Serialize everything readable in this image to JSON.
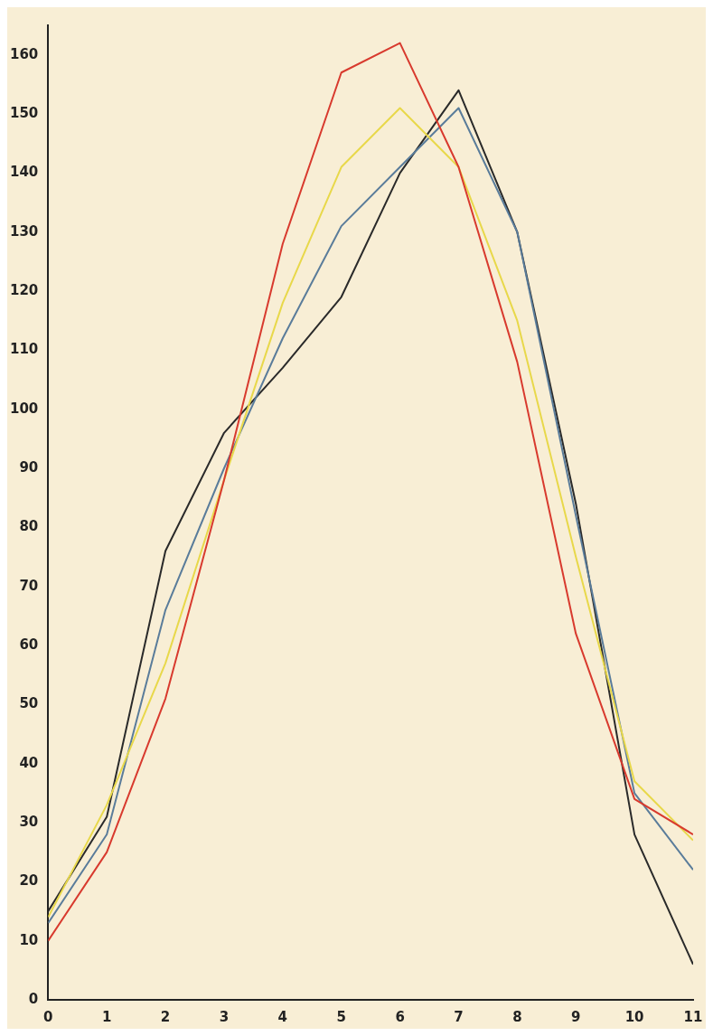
{
  "chart_data": {
    "type": "line",
    "x": [
      0,
      1,
      2,
      3,
      4,
      5,
      6,
      7,
      8,
      9,
      10,
      11
    ],
    "series": [
      {
        "color": "#d83a2e",
        "values": [
          10,
          25,
          51,
          88,
          128,
          157,
          162,
          141,
          108,
          62,
          34,
          28
        ]
      },
      {
        "color": "#e8d84a",
        "values": [
          14,
          33,
          57,
          88,
          118,
          141,
          151,
          141,
          115,
          75,
          37,
          27
        ]
      },
      {
        "color": "#5a7c9a",
        "values": [
          13,
          28,
          66,
          90,
          112,
          131,
          141,
          151,
          130,
          82,
          35,
          22
        ]
      },
      {
        "color": "#2a2a2a",
        "values": [
          15,
          31,
          76,
          96,
          107,
          119,
          140,
          154,
          130,
          84,
          28,
          6
        ]
      }
    ],
    "xlim": [
      0,
      11
    ],
    "xticks": [
      0,
      1,
      2,
      3,
      4,
      5,
      6,
      7,
      8,
      9,
      10,
      11
    ],
    "ylim": [
      0,
      165
    ],
    "yticks": [
      0,
      10,
      20,
      30,
      40,
      50,
      60,
      70,
      80,
      90,
      100,
      110,
      120,
      130,
      140,
      150,
      160
    ],
    "grid": false,
    "marker": "none",
    "line_style": "solid",
    "legend": false
  }
}
